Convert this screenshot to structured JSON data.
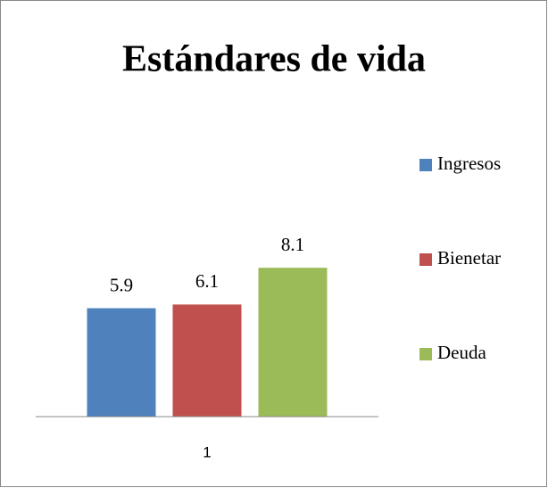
{
  "chart_data": {
    "type": "bar",
    "title": "Estándares de vida",
    "categories": [
      "1"
    ],
    "series": [
      {
        "name": "Ingresos",
        "color": "#4f81bd",
        "values": [
          5.9
        ]
      },
      {
        "name": "Bienetar",
        "color": "#c0504d",
        "values": [
          6.1
        ]
      },
      {
        "name": "Deuda",
        "color": "#9bbb59",
        "values": [
          8.1
        ]
      }
    ],
    "ylim": [
      0,
      10
    ],
    "legend": "right"
  }
}
